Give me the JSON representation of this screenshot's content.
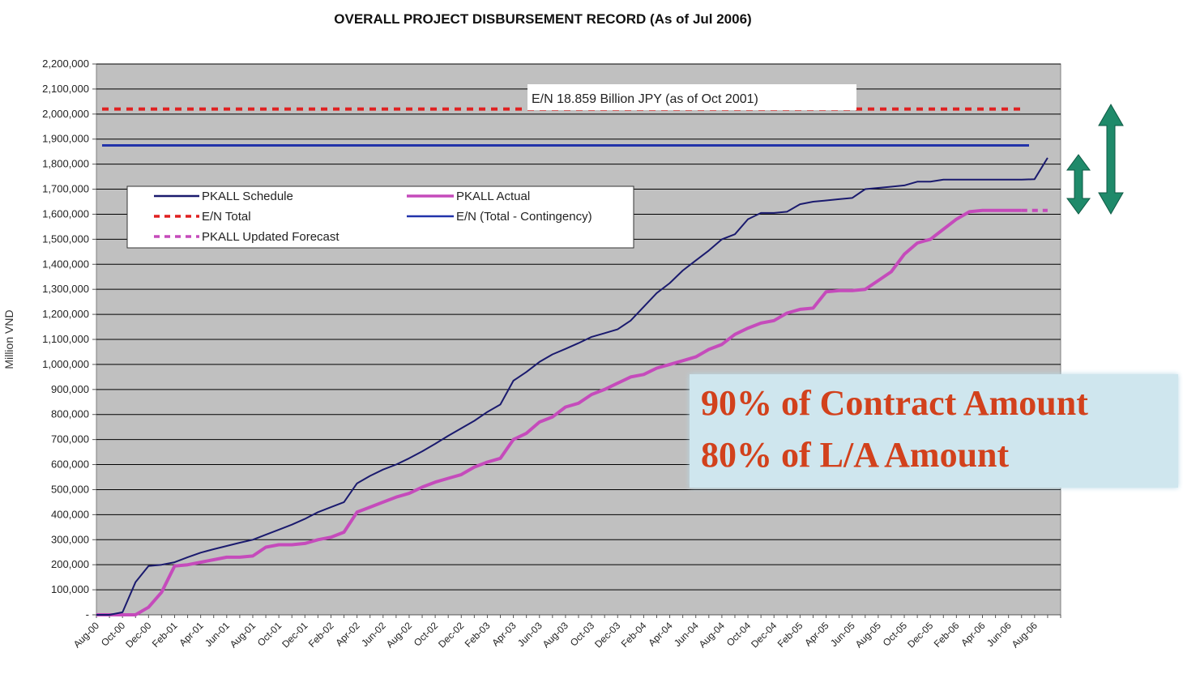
{
  "chart_data": {
    "type": "line",
    "title": "OVERALL PROJECT DISBURSEMENT RECORD (As of Jul 2006)",
    "ylabel": "Million VND",
    "xlabel": "",
    "ylim": [
      0,
      2200000
    ],
    "yticks": [
      "-",
      "100,000",
      "200,000",
      "300,000",
      "400,000",
      "500,000",
      "600,000",
      "700,000",
      "800,000",
      "900,000",
      "1,000,000",
      "1,100,000",
      "1,200,000",
      "1,300,000",
      "1,400,000",
      "1,500,000",
      "1,600,000",
      "1,700,000",
      "1,800,000",
      "1,900,000",
      "2,000,000",
      "2,100,000",
      "2,200,000"
    ],
    "x_ticks": [
      "Aug-00",
      "Oct-00",
      "Dec-00",
      "Feb-01",
      "Apr-01",
      "Jun-01",
      "Aug-01",
      "Oct-01",
      "Dec-01",
      "Feb-02",
      "Apr-02",
      "Jun-02",
      "Aug-02",
      "Oct-02",
      "Dec-02",
      "Feb-03",
      "Apr-03",
      "Jun-03",
      "Aug-03",
      "Oct-03",
      "Dec-03",
      "Feb-04",
      "Apr-04",
      "Jun-04",
      "Aug-04",
      "Oct-04",
      "Dec-04",
      "Feb-05",
      "Apr-05",
      "Jun-05",
      "Aug-05",
      "Oct-05",
      "Dec-05",
      "Feb-06",
      "Apr-06",
      "Jun-06",
      "Aug-06"
    ],
    "grid": true,
    "legend_position": "upper-left",
    "annotation": "E/N 18.859 Billion JPY  (as of Oct 2001)",
    "series": [
      {
        "name": "PKALL Schedule",
        "color": "#1a1a6e",
        "style": "solid",
        "x": [
          "Aug-00",
          "Sep-00",
          "Oct-00",
          "Nov-00",
          "Dec-00",
          "Jan-01",
          "Feb-01",
          "Mar-01",
          "Apr-01",
          "May-01",
          "Jun-01",
          "Jul-01",
          "Aug-01",
          "Sep-01",
          "Oct-01",
          "Nov-01",
          "Dec-01",
          "Jan-02",
          "Feb-02",
          "Mar-02",
          "Apr-02",
          "May-02",
          "Jun-02",
          "Jul-02",
          "Aug-02",
          "Sep-02",
          "Oct-02",
          "Nov-02",
          "Dec-02",
          "Jan-03",
          "Feb-03",
          "Mar-03",
          "Apr-03",
          "May-03",
          "Jun-03",
          "Jul-03",
          "Aug-03",
          "Sep-03",
          "Oct-03",
          "Nov-03",
          "Dec-03",
          "Jan-04",
          "Feb-04",
          "Mar-04",
          "Apr-04",
          "May-04",
          "Jun-04",
          "Jul-04",
          "Aug-04",
          "Sep-04",
          "Oct-04",
          "Nov-04",
          "Dec-04",
          "Jan-05",
          "Feb-05",
          "Mar-05",
          "Apr-05",
          "May-05",
          "Jun-05",
          "Jul-05",
          "Aug-05",
          "Sep-05",
          "Oct-05",
          "Nov-05",
          "Dec-05",
          "Jan-06",
          "Feb-06",
          "Mar-06",
          "Apr-06",
          "May-06",
          "Jun-06",
          "Jul-06",
          "Aug-06",
          "Sep-06"
        ],
        "y": [
          0,
          0,
          10000,
          130000,
          195000,
          200000,
          210000,
          230000,
          248000,
          262000,
          275000,
          288000,
          300000,
          320000,
          340000,
          360000,
          383000,
          410000,
          430000,
          450000,
          525000,
          555000,
          580000,
          600000,
          625000,
          653000,
          683000,
          715000,
          745000,
          775000,
          810000,
          840000,
          935000,
          970000,
          1010000,
          1040000,
          1062000,
          1085000,
          1110000,
          1125000,
          1140000,
          1175000,
          1230000,
          1285000,
          1325000,
          1375000,
          1415000,
          1455000,
          1500000,
          1520000,
          1580000,
          1605000,
          1605000,
          1610000,
          1640000,
          1650000,
          1655000,
          1660000,
          1665000,
          1700000,
          1705000,
          1710000,
          1715000,
          1730000,
          1730000,
          1738000,
          1738000,
          1738000,
          1738000,
          1738000,
          1738000,
          1738000,
          1740000,
          1825000
        ]
      },
      {
        "name": "PKALL Actual",
        "color": "#c54bbb",
        "style": "solid",
        "x": [
          "Aug-00",
          "Sep-00",
          "Oct-00",
          "Nov-00",
          "Dec-00",
          "Jan-01",
          "Feb-01",
          "Mar-01",
          "Apr-01",
          "May-01",
          "Jun-01",
          "Jul-01",
          "Aug-01",
          "Sep-01",
          "Oct-01",
          "Nov-01",
          "Dec-01",
          "Jan-02",
          "Feb-02",
          "Mar-02",
          "Apr-02",
          "May-02",
          "Jun-02",
          "Jul-02",
          "Aug-02",
          "Sep-02",
          "Oct-02",
          "Nov-02",
          "Dec-02",
          "Jan-03",
          "Feb-03",
          "Mar-03",
          "Apr-03",
          "May-03",
          "Jun-03",
          "Jul-03",
          "Aug-03",
          "Sep-03",
          "Oct-03",
          "Nov-03",
          "Dec-03",
          "Jan-04",
          "Feb-04",
          "Mar-04",
          "Apr-04",
          "May-04",
          "Jun-04",
          "Jul-04",
          "Aug-04",
          "Sep-04",
          "Oct-04",
          "Nov-04",
          "Dec-04",
          "Jan-05",
          "Feb-05",
          "Mar-05",
          "Apr-05",
          "May-05",
          "Jun-05",
          "Jul-05",
          "Aug-05",
          "Sep-05",
          "Oct-05",
          "Nov-05",
          "Dec-05",
          "Jan-06",
          "Feb-06",
          "Mar-06",
          "Apr-06",
          "May-06",
          "Jun-06",
          "Jul-06"
        ],
        "y": [
          0,
          0,
          0,
          0,
          30000,
          90000,
          195000,
          200000,
          210000,
          220000,
          230000,
          230000,
          235000,
          270000,
          280000,
          280000,
          285000,
          300000,
          310000,
          330000,
          410000,
          430000,
          450000,
          470000,
          485000,
          510000,
          530000,
          545000,
          560000,
          590000,
          610000,
          625000,
          700000,
          725000,
          770000,
          790000,
          830000,
          845000,
          880000,
          900000,
          925000,
          950000,
          960000,
          985000,
          1000000,
          1015000,
          1030000,
          1060000,
          1080000,
          1120000,
          1145000,
          1165000,
          1175000,
          1205000,
          1220000,
          1225000,
          1290000,
          1295000,
          1295000,
          1300000,
          1335000,
          1370000,
          1440000,
          1485000,
          1500000,
          1540000,
          1580000,
          1610000,
          1615000,
          1615000,
          1615000,
          1615000
        ]
      },
      {
        "name": "E/N Total",
        "color": "#e02020",
        "style": "dashed",
        "value": 2020000
      },
      {
        "name": "E/N (Total - Contingency)",
        "color": "#2233aa",
        "style": "solid",
        "value": 1875000
      },
      {
        "name": "PKALL Updated Forecast",
        "color": "#c54bbb",
        "style": "dashed",
        "x": [
          "Jul-06",
          "Sep-06"
        ],
        "y": [
          1615000,
          1615000
        ]
      }
    ]
  },
  "callout": {
    "line1": "90% of Contract Amount",
    "line2": "80% of L/A Amount"
  },
  "colors": {
    "plot_background": "#c0c0c0",
    "gridline": "#000000",
    "arrow": "#1f8a6a",
    "callout_background": "#cfe6ee",
    "callout_text": "#d2411c"
  }
}
